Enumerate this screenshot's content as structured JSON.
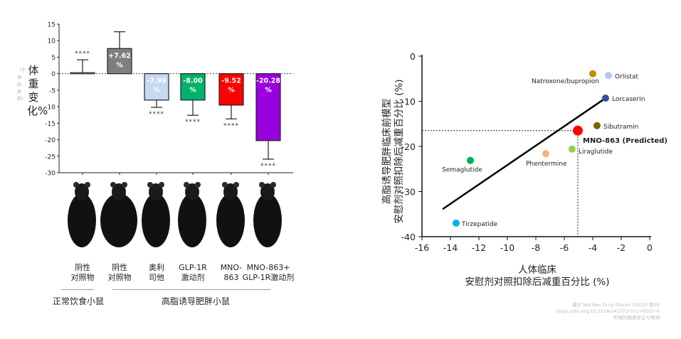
{
  "chart_data": [
    {
      "type": "bar",
      "ylabel": "体重变化%",
      "ylabel_sub": "（干预四周后）",
      "ylim": [
        -30,
        15
      ],
      "yticks": [
        15,
        10,
        5,
        0,
        -5,
        -10,
        -15,
        -20,
        -25,
        -30
      ],
      "categories": [
        "阴性\n对照物",
        "阴性\n对照物",
        "奥利\n司他",
        "GLP-1R\n激动剂",
        "MNO-\n863",
        "MNO-863+\nGLP-1R激动剂"
      ],
      "values": [
        0.3,
        7.62,
        -7.99,
        -8.0,
        -9.52,
        -20.28
      ],
      "error_ends": [
        4.2,
        12.7,
        -10.2,
        -12.6,
        -13.7,
        -25.9
      ],
      "data_labels": [
        "",
        "+7.62\n%",
        "-7.99\n%",
        "-8.00\n%",
        "-9.52\n%",
        "-20.28\n%"
      ],
      "significance": [
        "****",
        "",
        "****",
        "****",
        "****",
        "****"
      ],
      "colors": [
        "#ffffff",
        "#7f7f7f",
        "#c6d9f1",
        "#00b36b",
        "#ff0000",
        "#9900dd"
      ],
      "groups": [
        {
          "label": "正常饮食小鼠",
          "span": [
            0,
            0
          ]
        },
        {
          "label": "高脂诱导肥胖小鼠",
          "span": [
            1,
            5
          ]
        }
      ]
    },
    {
      "type": "scatter",
      "xlabel": "人体临床\n安慰剂对照扣除后减重百分比 (%)",
      "ylabel": "高脂诱导肥胖临床前模型\n安慰剂对照扣除后减重百分比 (%)",
      "xlim": [
        -16,
        0
      ],
      "ylim": [
        -40,
        0
      ],
      "xticks": [
        -16,
        -14,
        -12,
        -10,
        -8,
        -6,
        -4,
        -2,
        0
      ],
      "yticks": [
        0,
        -10,
        -20,
        -30,
        -40
      ],
      "points": [
        {
          "name": "Natroxone/bupropion",
          "x": -4.0,
          "y": -3.9,
          "color": "#c09000"
        },
        {
          "name": "Orlistat",
          "x": -2.9,
          "y": -4.3,
          "color": "#b4c8ea"
        },
        {
          "name": "Lorcaserin",
          "x": -3.1,
          "y": -9.3,
          "color": "#2f5597"
        },
        {
          "name": "Sibutramin",
          "x": -3.7,
          "y": -15.4,
          "color": "#7f6000"
        },
        {
          "name": "MNO-863 (Predicted)",
          "x": -5.05,
          "y": -16.5,
          "color": "#ff0000",
          "highlight": true
        },
        {
          "name": "Liraglutide",
          "x": -5.45,
          "y": -20.6,
          "color": "#92d050"
        },
        {
          "name": "Phentermine",
          "x": -7.3,
          "y": -21.6,
          "color": "#f4b183"
        },
        {
          "name": "Semaglutide",
          "x": -12.6,
          "y": -23.1,
          "color": "#00b050"
        },
        {
          "name": "Tirzepatide",
          "x": -13.6,
          "y": -37.0,
          "color": "#00b0f0"
        }
      ],
      "fit_line": [
        [
          -14.55,
          -33.9
        ],
        [
          -3.1,
          -9.3
        ]
      ]
    }
  ],
  "credit": "基於 Nat Rev Drug Discov (2022) 图3b\nhttps://doi.org/10.1038/s41573-021-00337-8\n所做的图表修正与预测"
}
